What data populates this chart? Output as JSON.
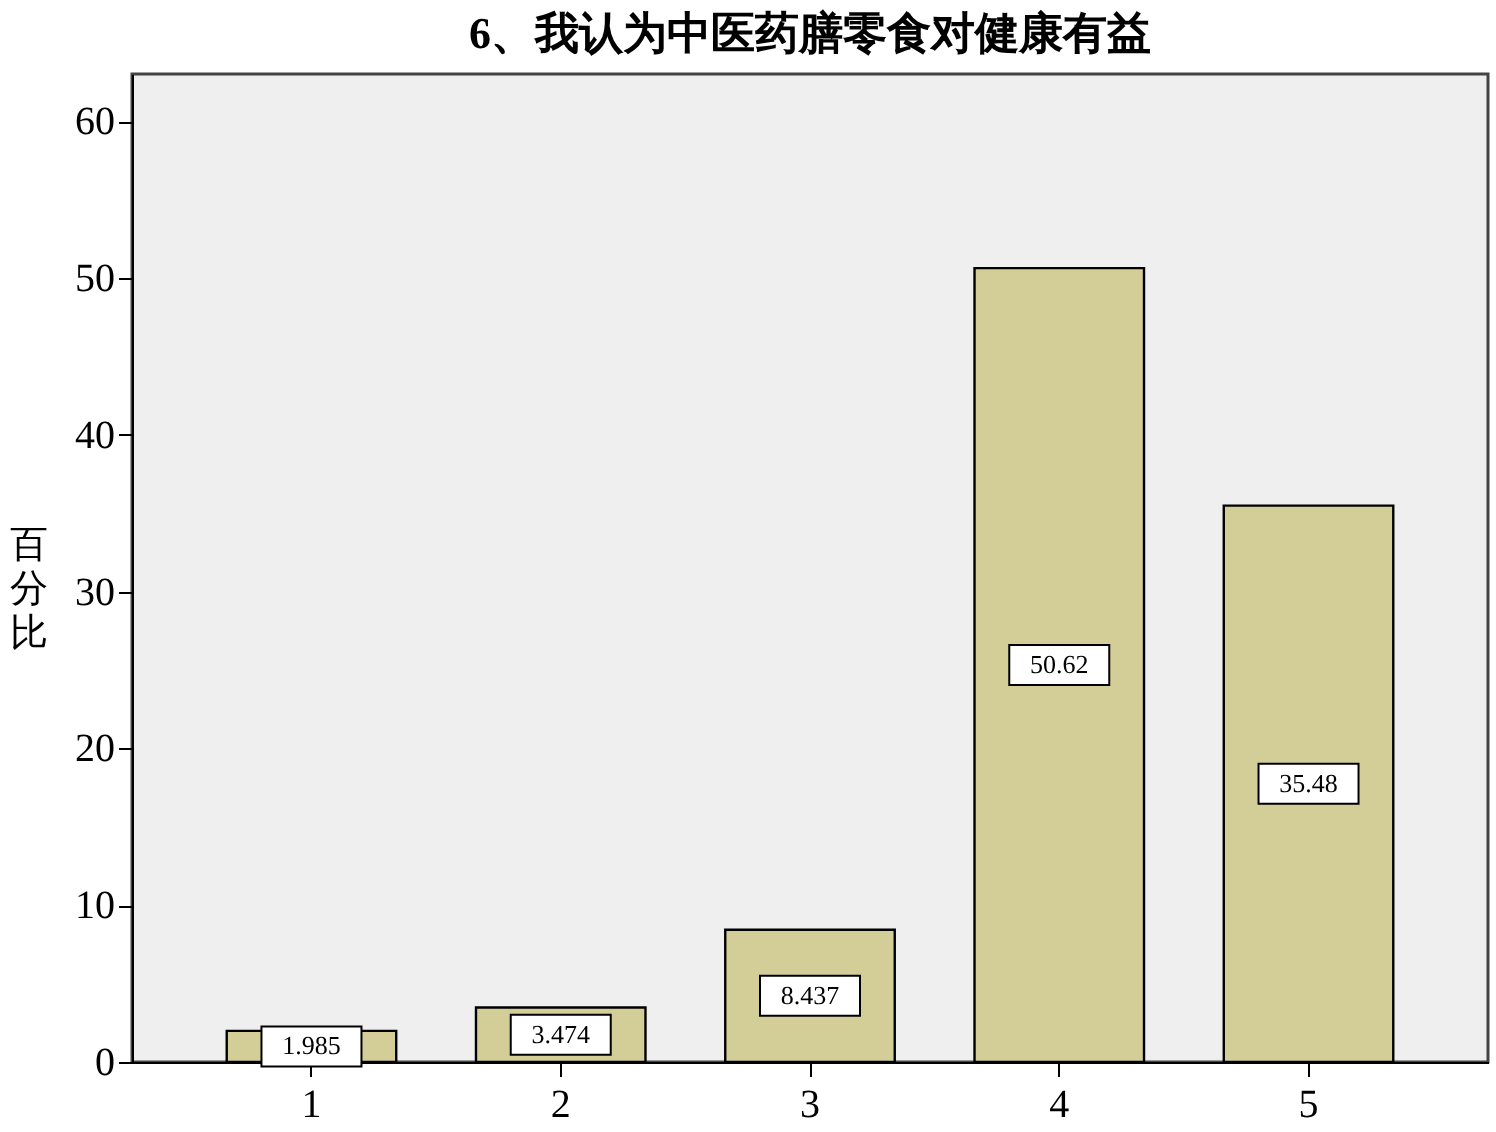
{
  "chart_data": {
    "type": "bar",
    "title": "6、我认为中医药膳零食对健康有益",
    "ylabel": "百分比",
    "categories": [
      "1",
      "2",
      "3",
      "4",
      "5"
    ],
    "values": [
      1.985,
      3.474,
      8.437,
      50.62,
      35.48
    ],
    "color": "#d3ce98",
    "ylim": [
      0,
      63
    ],
    "yticks": [
      0,
      10,
      20,
      30,
      40,
      50,
      60
    ],
    "data_labels": true,
    "grid": false
  }
}
